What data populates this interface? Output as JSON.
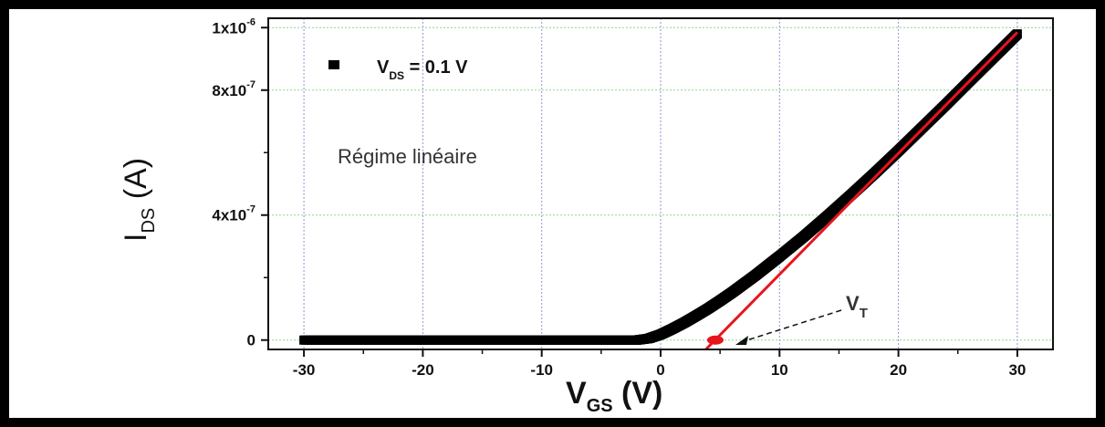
{
  "chart_data": {
    "type": "scatter",
    "xlabel_main": "V",
    "xlabel_sub": "GS",
    "xlabel_unit": " (V)",
    "ylabel_main": "I",
    "ylabel_sub": "DS",
    "ylabel_unit": " (A)",
    "xlim": [
      -33,
      33
    ],
    "ylim": [
      -3e-08,
      1.03e-06
    ],
    "x_ticks": [
      -30,
      -20,
      -10,
      0,
      10,
      20,
      30
    ],
    "x_tick_labels": [
      "-30",
      "-20",
      "-10",
      "0",
      "10",
      "20",
      "30"
    ],
    "y_ticks": [
      0,
      4e-07,
      8e-07,
      1e-06
    ],
    "y_tick_labels": [
      {
        "mantissa": "0",
        "exp": ""
      },
      {
        "mantissa": "4x10",
        "exp": "-7"
      },
      {
        "mantissa": "8x10",
        "exp": "-7"
      },
      {
        "mantissa": "1x10",
        "exp": "-6"
      }
    ],
    "grid": true,
    "series": [
      {
        "name": "V_DS = 0.1 V",
        "color": "#000000",
        "marker": "square",
        "x": [
          -30,
          -25,
          -20,
          -15,
          -10,
          -5,
          -2,
          -1,
          0,
          1,
          2,
          3,
          4,
          5,
          6,
          7,
          8,
          9,
          10,
          12,
          14,
          16,
          18,
          20,
          22,
          24,
          26,
          28,
          30
        ],
        "y": [
          0,
          0,
          0,
          0,
          0,
          0,
          0,
          5e-09,
          1.8e-08,
          3.6e-08,
          5.6e-08,
          7.8e-08,
          1.01e-07,
          1.26e-07,
          1.52e-07,
          1.8e-07,
          2.08e-07,
          2.38e-07,
          2.68e-07,
          3.3e-07,
          3.96e-07,
          4.64e-07,
          5.34e-07,
          6.06e-07,
          6.8e-07,
          7.54e-07,
          8.3e-07,
          9.05e-07,
          9.8e-07
        ]
      }
    ],
    "fit_line": {
      "color": "#e8141c",
      "x": [
        3.8,
        30
      ],
      "y": [
        -3e-08,
        9.85e-07
      ]
    },
    "vt_point": {
      "x": 4.6,
      "y": 0,
      "color": "#e8141c"
    },
    "legend": {
      "symbol_color": "#000000",
      "label_main": "V",
      "label_sub": "DS",
      "label_rest": " = 0.1 V",
      "position": "top-left"
    },
    "annotations": [
      {
        "text": "Régime linéaire"
      },
      {
        "text_main": "V",
        "text_sub": "T"
      }
    ]
  }
}
